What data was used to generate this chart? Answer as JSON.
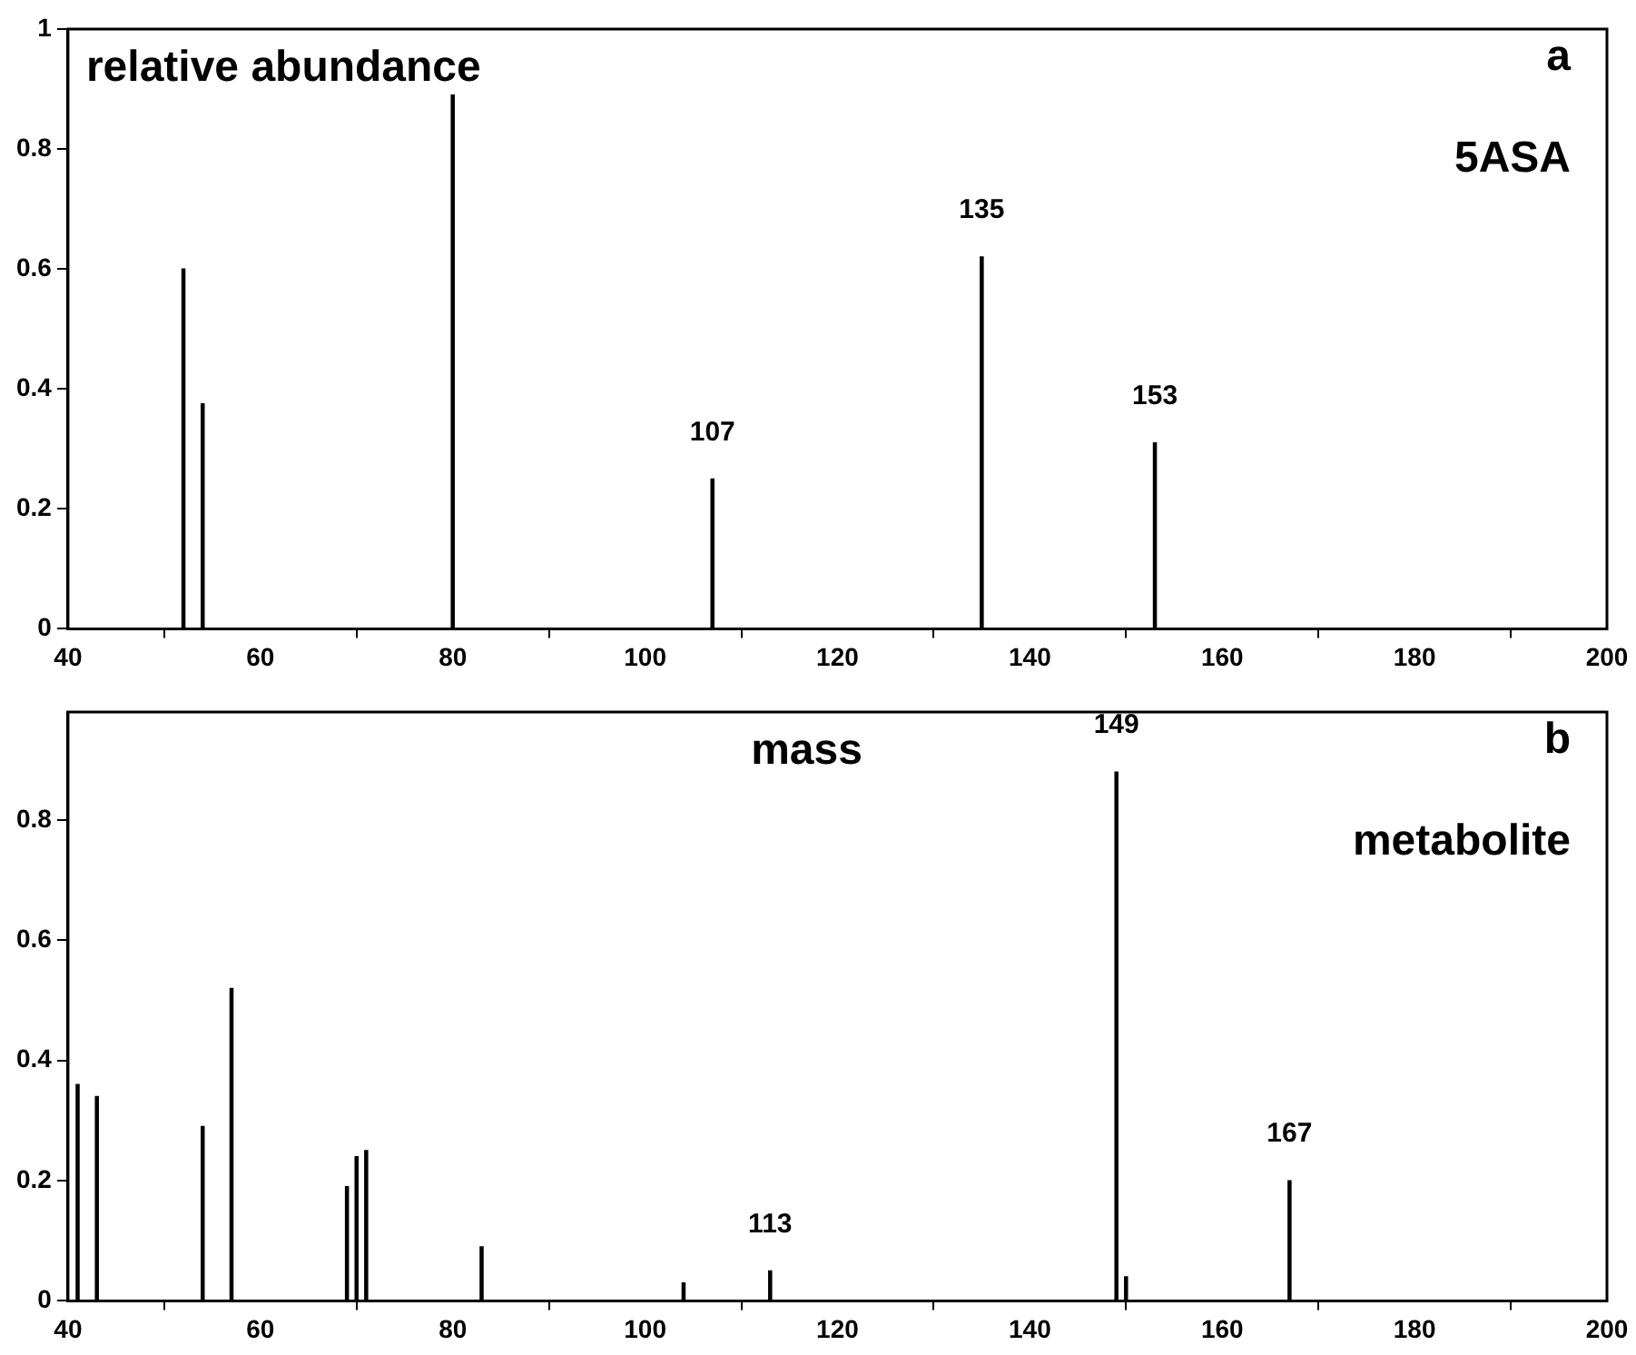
{
  "chart_data": [
    {
      "type": "bar",
      "ylabel": "relative abundance",
      "annotations": [
        "a",
        "5ASA",
        {
          "text": "107",
          "x": 107,
          "y": 0.25
        },
        {
          "text": "135",
          "x": 135,
          "y": 0.62
        },
        {
          "text": "153",
          "x": 153,
          "y": 0.31
        }
      ],
      "x": [
        52,
        54,
        80,
        107,
        135,
        153
      ],
      "values": [
        0.6,
        0.375,
        0.89,
        0.25,
        0.62,
        0.31
      ],
      "color": "#000000",
      "xlim": [
        40,
        200
      ],
      "xticks": [
        40,
        60,
        80,
        100,
        120,
        140,
        160,
        180,
        200
      ],
      "ylim": [
        0,
        1
      ],
      "yticks": [
        0,
        0.2,
        0.4,
        0.6,
        0.8,
        1
      ],
      "grid": false,
      "legend": false
    },
    {
      "type": "bar",
      "xlabel": "mass",
      "annotations": [
        "b",
        "metabolite",
        {
          "text": "113",
          "x": 113,
          "y": 0.05
        },
        {
          "text": "149",
          "x": 149,
          "y": 0.88
        },
        {
          "text": "167",
          "x": 167,
          "y": 0.2
        }
      ],
      "x": [
        41,
        43,
        54,
        57,
        69,
        70,
        71,
        83,
        104,
        113,
        149,
        150,
        167
      ],
      "values": [
        0.36,
        0.34,
        0.29,
        0.52,
        0.19,
        0.24,
        0.25,
        0.09,
        0.03,
        0.05,
        0.88,
        0.04,
        0.2
      ],
      "color": "#000000",
      "xlim": [
        40,
        200
      ],
      "xticks": [
        40,
        60,
        80,
        100,
        120,
        140,
        160,
        180,
        200
      ],
      "ylim": [
        0,
        0.98
      ],
      "yticks": [
        0,
        0.2,
        0.4,
        0.6,
        0.8
      ],
      "grid": false,
      "legend": false
    }
  ]
}
